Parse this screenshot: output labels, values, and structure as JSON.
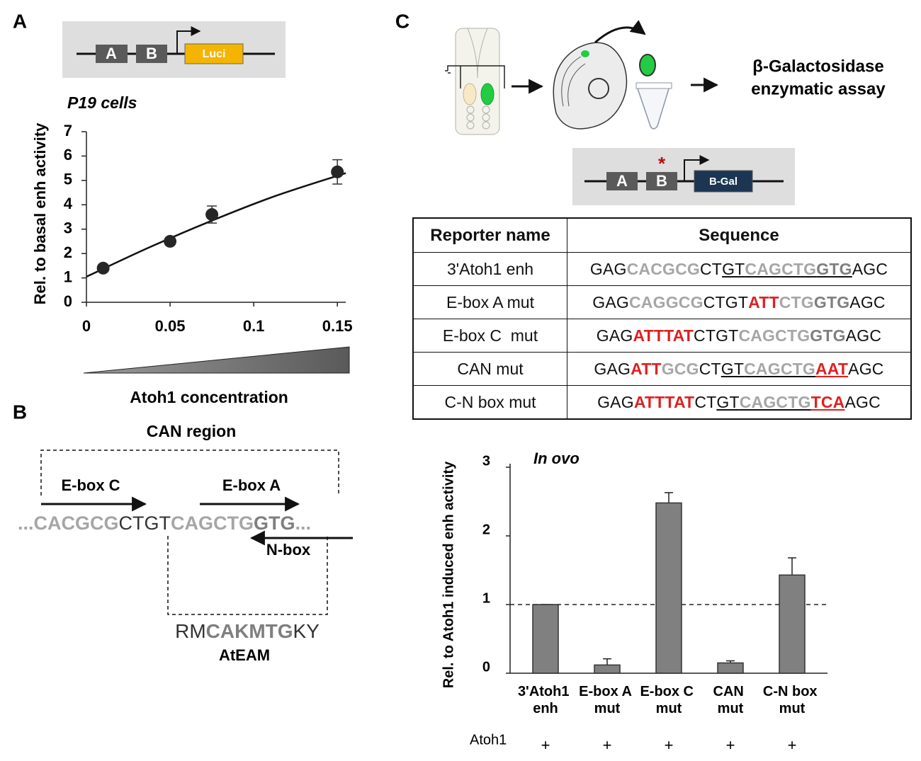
{
  "panel_letters": [
    "A",
    "B",
    "C"
  ],
  "panel_a": {
    "construct": {
      "elements": [
        "A",
        "B"
      ],
      "reporter": "Luci"
    }
  },
  "chart_data": [
    {
      "type": "scatter",
      "title": "P19 cells",
      "ylabel": "Rel. to basal enh activity",
      "xlabel": "Atoh1 concentration",
      "x": [
        0.01,
        0.05,
        0.075,
        0.15
      ],
      "values": [
        1.4,
        2.5,
        3.6,
        5.35
      ],
      "errors": [
        0.1,
        0.15,
        0.35,
        0.5
      ],
      "color": "#262626",
      "fit": {
        "x": [
          0,
          0.0375,
          0.075,
          0.1125,
          0.155
        ],
        "values": [
          1.05,
          2.25,
          3.35,
          4.35,
          5.3
        ]
      },
      "xlim": [
        0,
        0.155
      ],
      "xticks": [
        0,
        0.05,
        0.1,
        0.15
      ],
      "ylim": [
        0,
        7
      ],
      "yticks": [
        0,
        1,
        2,
        3,
        4,
        5,
        6,
        7
      ]
    },
    {
      "type": "bar",
      "title": "In ovo",
      "ylabel": "Rel. to Atoh1 induced enh activity",
      "categories": [
        "3'Atoh1 enh",
        "E-box A mut",
        "E-box C mut",
        "CAN mut",
        "C-N box mut"
      ],
      "values": [
        1,
        0.12,
        2.48,
        0.15,
        1.43
      ],
      "errors": [
        0,
        0.09,
        0.15,
        0.03,
        0.25
      ],
      "color": "#808080",
      "ylim": [
        0,
        3
      ],
      "yticks": [
        0,
        1,
        2,
        3
      ],
      "reference_line": 1,
      "treatment": {
        "label": "Atoh1",
        "values": [
          "+",
          "+",
          "+",
          "+",
          "+"
        ]
      }
    }
  ],
  "panel_b": {
    "region_label": "CAN region",
    "motifs": [
      "E-box C",
      "E-box A",
      "N-box"
    ],
    "sequence": [
      {
        "text": "...CACGCG",
        "color": "#a6a6a6",
        "bold": true
      },
      {
        "text": "CTGT",
        "color": "#333333"
      },
      {
        "text": "CAGCTG",
        "color": "#a6a6a6",
        "bold": true
      },
      {
        "text": "GTG",
        "color": "#7f7f7f",
        "bold": true
      },
      {
        "text": "...",
        "color": "#a6a6a6",
        "bold": true
      }
    ],
    "consensus": [
      {
        "text": "RM",
        "color": "#333333"
      },
      {
        "text": "CAKMTG",
        "color": "#7f7f7f",
        "bold": true
      },
      {
        "text": "KY",
        "color": "#333333"
      }
    ],
    "consensus_name": "AtEAM"
  },
  "panel_c": {
    "assay_label": [
      "β-Galactosidase",
      "enzymatic assay"
    ],
    "construct": {
      "elements": [
        "A",
        "B"
      ],
      "mutation_mark": "*",
      "reporter": "B-Gal"
    },
    "table": {
      "header": [
        "Reporter name",
        "Sequence"
      ],
      "rows": [
        {
          "name": "3'Atoh1 enh",
          "sequence": [
            {
              "text": "GAG",
              "color": "#111111"
            },
            {
              "text": "CACGCG",
              "color": "#a6a6a6",
              "bold": true
            },
            {
              "text": "CT",
              "color": "#111111"
            },
            {
              "text": "GT",
              "color": "#111111",
              "underline": true
            },
            {
              "text": "CAGCTG",
              "color": "#a6a6a6",
              "bold": true,
              "underline": true
            },
            {
              "text": "GTG",
              "color": "#7f7f7f",
              "bold": true,
              "underline": true
            },
            {
              "text": "AGC",
              "color": "#111111"
            }
          ]
        },
        {
          "name": "E-box A mut",
          "sequence": [
            {
              "text": "GAG",
              "color": "#111111"
            },
            {
              "text": "CAGGCG",
              "color": "#a6a6a6",
              "bold": true
            },
            {
              "text": "CTGT",
              "color": "#111111"
            },
            {
              "text": "ATT",
              "color": "#e02020",
              "bold": true
            },
            {
              "text": "CTG",
              "color": "#a6a6a6",
              "bold": true
            },
            {
              "text": "GTG",
              "color": "#7f7f7f",
              "bold": true
            },
            {
              "text": "AGC",
              "color": "#111111"
            }
          ]
        },
        {
          "name": "E-box C  mut",
          "sequence": [
            {
              "text": "GAG",
              "color": "#111111"
            },
            {
              "text": "ATTTAT",
              "color": "#e02020",
              "bold": true
            },
            {
              "text": "CTGT",
              "color": "#111111"
            },
            {
              "text": "CAGCTG",
              "color": "#a6a6a6",
              "bold": true
            },
            {
              "text": "GTG",
              "color": "#7f7f7f",
              "bold": true
            },
            {
              "text": "AGC",
              "color": "#111111"
            }
          ]
        },
        {
          "name": "CAN mut",
          "sequence": [
            {
              "text": "GAG",
              "color": "#111111"
            },
            {
              "text": "ATT",
              "color": "#e02020",
              "bold": true
            },
            {
              "text": "GCG",
              "color": "#a6a6a6",
              "bold": true
            },
            {
              "text": "CT",
              "color": "#111111"
            },
            {
              "text": "GT",
              "color": "#111111",
              "underline": true
            },
            {
              "text": "CAGCTG",
              "color": "#a6a6a6",
              "bold": true,
              "underline": true
            },
            {
              "text": "AAT",
              "color": "#e02020",
              "bold": true,
              "underline": true
            },
            {
              "text": "AGC",
              "color": "#111111"
            }
          ]
        },
        {
          "name": "C-N box mut",
          "sequence": [
            {
              "text": "GAG",
              "color": "#111111"
            },
            {
              "text": "ATTTAT",
              "color": "#e02020",
              "bold": true
            },
            {
              "text": "CT",
              "color": "#111111"
            },
            {
              "text": "GT",
              "color": "#111111",
              "underline": true
            },
            {
              "text": "CAGCTG",
              "color": "#a6a6a6",
              "bold": true,
              "underline": true
            },
            {
              "text": "TCA",
              "color": "#e02020",
              "bold": true,
              "underline": true
            },
            {
              "text": "AGC",
              "color": "#111111"
            }
          ]
        }
      ]
    }
  }
}
